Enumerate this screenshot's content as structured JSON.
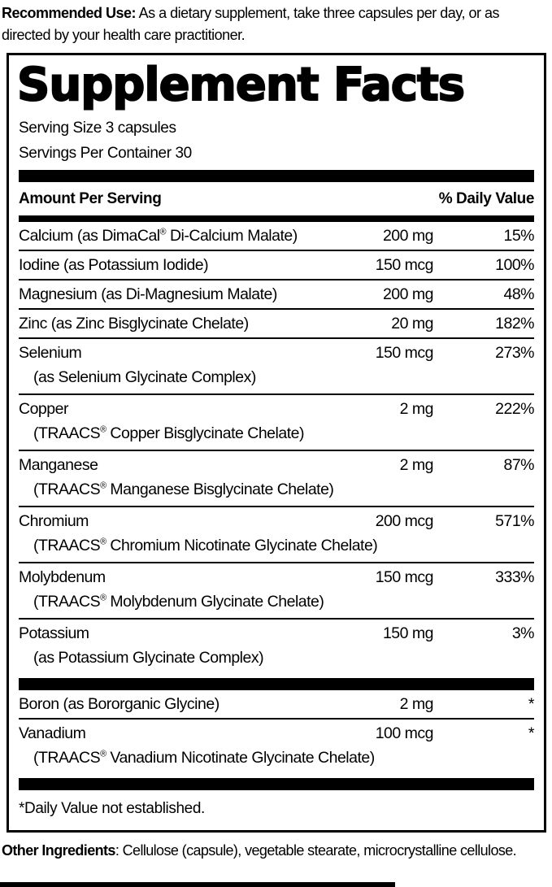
{
  "colors": {
    "ink": "#000000",
    "paper": "#ffffff"
  },
  "recommended_use": {
    "label": "Recommended Use:",
    "text": " As a dietary supplement, take three capsules per day, or as directed by your health care practitioner."
  },
  "panel": {
    "title": "Supplement Facts",
    "serving_size": "Serving Size 3 capsules",
    "servings_per_container": "Servings Per Container 30",
    "header": {
      "amount_label": "Amount Per Serving",
      "dv_label": "% Daily Value"
    },
    "main_rows": [
      {
        "name": "Calcium (as DimaCal® Di-Calcium Malate)",
        "sub": "",
        "amount": "200 mg",
        "dv": "15%"
      },
      {
        "name": "Iodine (as Potassium Iodide)",
        "sub": "",
        "amount": "150 mcg",
        "dv": "100%"
      },
      {
        "name": "Magnesium (as Di-Magnesium Malate)",
        "sub": "",
        "amount": "200 mg",
        "dv": "48%"
      },
      {
        "name": "Zinc (as Zinc Bisglycinate Chelate)",
        "sub": "",
        "amount": "20 mg",
        "dv": "182%"
      },
      {
        "name": "Selenium",
        "sub": "(as Selenium Glycinate Complex)",
        "amount": "150 mcg",
        "dv": "273%"
      },
      {
        "name": "Copper",
        "sub": "(TRAACS® Copper Bisglycinate Chelate)",
        "amount": "2 mg",
        "dv": "222%"
      },
      {
        "name": "Manganese",
        "sub": "(TRAACS® Manganese Bisglycinate Chelate)",
        "amount": "2 mg",
        "dv": "87%"
      },
      {
        "name": "Chromium",
        "sub": "(TRAACS® Chromium Nicotinate Glycinate Chelate)",
        "amount": "200 mcg",
        "dv": "571%"
      },
      {
        "name": "Molybdenum",
        "sub": "(TRAACS® Molybdenum Glycinate Chelate)",
        "amount": "150 mcg",
        "dv": "333%"
      },
      {
        "name": "Potassium",
        "sub": "(as Potassium Glycinate Complex)",
        "amount": "150 mg",
        "dv": "3%"
      }
    ],
    "secondary_rows": [
      {
        "name": "Boron (as Bororganic Glycine)",
        "sub": "",
        "amount": "2 mg",
        "dv": "*"
      },
      {
        "name": "Vanadium",
        "sub": "(TRAACS® Vanadium Nicotinate Glycinate Chelate)",
        "amount": "100 mcg",
        "dv": "*"
      }
    ],
    "footnote": "*Daily Value not established."
  },
  "other_ingredients": {
    "label": "Other Ingredients",
    "text": ": Cellulose (capsule), vegetable stearate, microcrystalline cellulose."
  }
}
